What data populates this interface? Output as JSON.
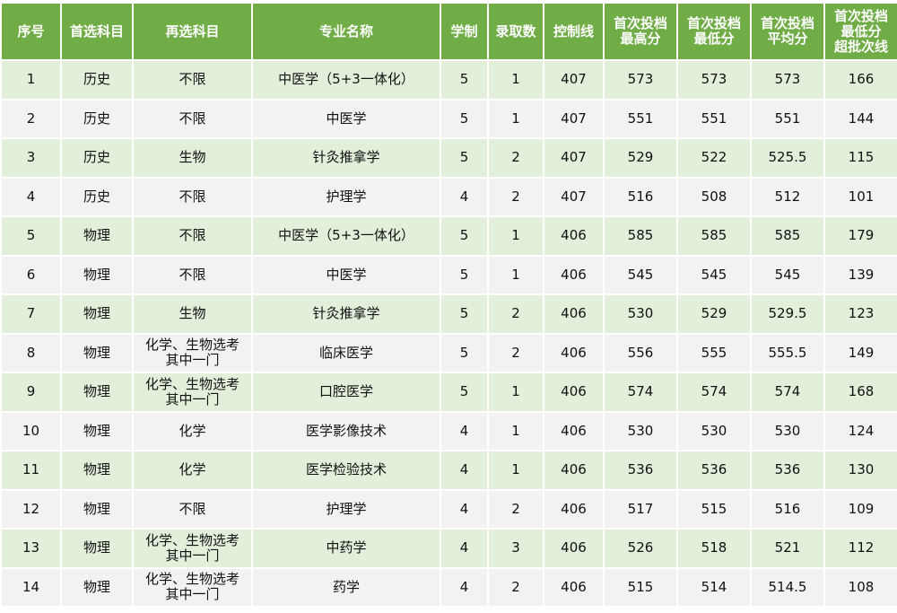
{
  "colors": {
    "header_bg": "#70ad47",
    "row_odd": "#e2efda",
    "row_even": "#f2f2f2"
  },
  "headers": [
    "序号",
    "首选科目",
    "再选科目",
    "专业名称",
    "学制",
    "录取数",
    "控制线",
    "首次投档\n最高分",
    "首次投档\n最低分",
    "首次投档\n平均分",
    "首次投档\n最低分\n超批次线"
  ],
  "rows": [
    [
      "1",
      "历史",
      "不限",
      "中医学（5+3一体化）",
      "5",
      "1",
      "407",
      "573",
      "573",
      "573",
      "166"
    ],
    [
      "2",
      "历史",
      "不限",
      "中医学",
      "5",
      "1",
      "407",
      "551",
      "551",
      "551",
      "144"
    ],
    [
      "3",
      "历史",
      "生物",
      "针灸推拿学",
      "5",
      "2",
      "407",
      "529",
      "522",
      "525.5",
      "115"
    ],
    [
      "4",
      "历史",
      "不限",
      "护理学",
      "4",
      "2",
      "407",
      "516",
      "508",
      "512",
      "101"
    ],
    [
      "5",
      "物理",
      "不限",
      "中医学（5+3一体化）",
      "5",
      "1",
      "406",
      "585",
      "585",
      "585",
      "179"
    ],
    [
      "6",
      "物理",
      "不限",
      "中医学",
      "5",
      "1",
      "406",
      "545",
      "545",
      "545",
      "139"
    ],
    [
      "7",
      "物理",
      "生物",
      "针灸推拿学",
      "5",
      "2",
      "406",
      "530",
      "529",
      "529.5",
      "123"
    ],
    [
      "8",
      "物理",
      "化学、生物选考\n其中一门",
      "临床医学",
      "5",
      "2",
      "406",
      "556",
      "555",
      "555.5",
      "149"
    ],
    [
      "9",
      "物理",
      "化学、生物选考\n其中一门",
      "口腔医学",
      "5",
      "1",
      "406",
      "574",
      "574",
      "574",
      "168"
    ],
    [
      "10",
      "物理",
      "化学",
      "医学影像技术",
      "4",
      "1",
      "406",
      "530",
      "530",
      "530",
      "124"
    ],
    [
      "11",
      "物理",
      "化学",
      "医学检验技术",
      "4",
      "1",
      "406",
      "536",
      "536",
      "536",
      "130"
    ],
    [
      "12",
      "物理",
      "不限",
      "护理学",
      "4",
      "2",
      "406",
      "517",
      "515",
      "516",
      "109"
    ],
    [
      "13",
      "物理",
      "化学、生物选考\n其中一门",
      "中药学",
      "4",
      "3",
      "406",
      "526",
      "518",
      "521",
      "112"
    ],
    [
      "14",
      "物理",
      "化学、生物选考\n其中一门",
      "药学",
      "4",
      "2",
      "406",
      "515",
      "514",
      "514.5",
      "108"
    ]
  ]
}
